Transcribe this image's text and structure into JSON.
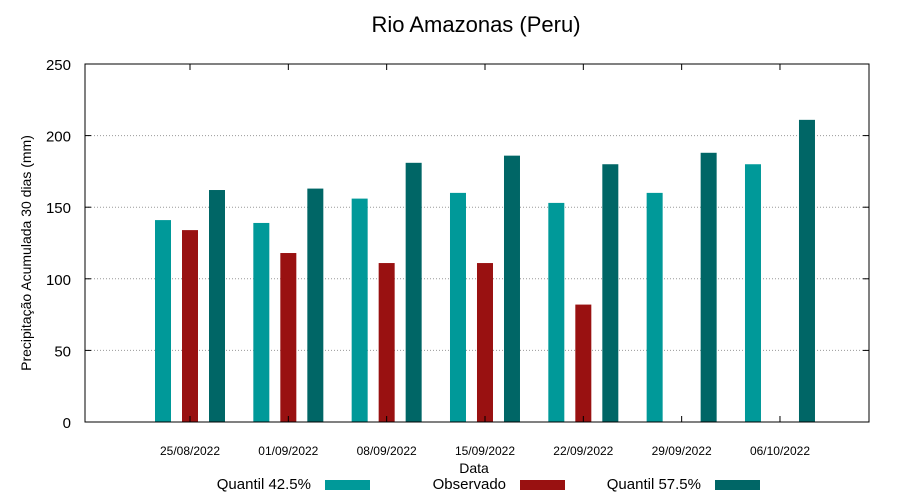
{
  "chart_data": {
    "type": "bar",
    "title": "Rio Amazonas (Peru)",
    "xlabel": "Data",
    "ylabel": "Precipitação Acumulada 30 dias (mm)",
    "ylim": [
      0,
      250
    ],
    "yticks": [
      "0",
      "50",
      "100",
      "150",
      "200",
      "250"
    ],
    "grid": true,
    "legend_position": "bottom",
    "categories": [
      "25/08/2022",
      "01/09/2022",
      "08/09/2022",
      "15/09/2022",
      "22/09/2022",
      "29/09/2022",
      "06/10/2022"
    ],
    "series": [
      {
        "name": "Quantil 42.5%",
        "color": "#009999",
        "values": [
          141,
          139,
          156,
          160,
          153,
          160,
          180
        ]
      },
      {
        "name": "Observado",
        "color": "#991111",
        "values": [
          134,
          118,
          111,
          111,
          82,
          null,
          null
        ]
      },
      {
        "name": "Quantil 57.5%",
        "color": "#006666",
        "values": [
          162,
          163,
          181,
          186,
          180,
          188,
          211
        ]
      }
    ]
  }
}
